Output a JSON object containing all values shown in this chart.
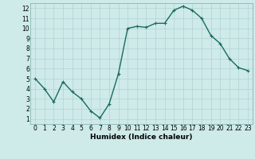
{
  "x": [
    0,
    1,
    2,
    3,
    4,
    5,
    6,
    7,
    8,
    9,
    10,
    11,
    12,
    13,
    14,
    15,
    16,
    17,
    18,
    19,
    20,
    21,
    22,
    23
  ],
  "y": [
    5.0,
    4.0,
    2.7,
    4.7,
    3.7,
    3.0,
    1.8,
    1.1,
    2.5,
    5.5,
    10.0,
    10.2,
    10.1,
    10.5,
    10.5,
    11.8,
    12.2,
    11.8,
    11.0,
    9.3,
    8.5,
    7.0,
    6.1,
    5.8
  ],
  "line_color": "#1a6b5a",
  "marker": "+",
  "marker_size": 3.5,
  "marker_linewidth": 0.8,
  "bg_color": "#ceeae9",
  "grid_color": "#b0d4d2",
  "xlabel": "Humidex (Indice chaleur)",
  "xlim": [
    -0.5,
    23.5
  ],
  "ylim": [
    0.5,
    12.5
  ],
  "yticks": [
    1,
    2,
    3,
    4,
    5,
    6,
    7,
    8,
    9,
    10,
    11,
    12
  ],
  "xticks": [
    0,
    1,
    2,
    3,
    4,
    5,
    6,
    7,
    8,
    9,
    10,
    11,
    12,
    13,
    14,
    15,
    16,
    17,
    18,
    19,
    20,
    21,
    22,
    23
  ],
  "tick_fontsize": 5.5,
  "xlabel_fontsize": 6.5,
  "linewidth": 1.0
}
